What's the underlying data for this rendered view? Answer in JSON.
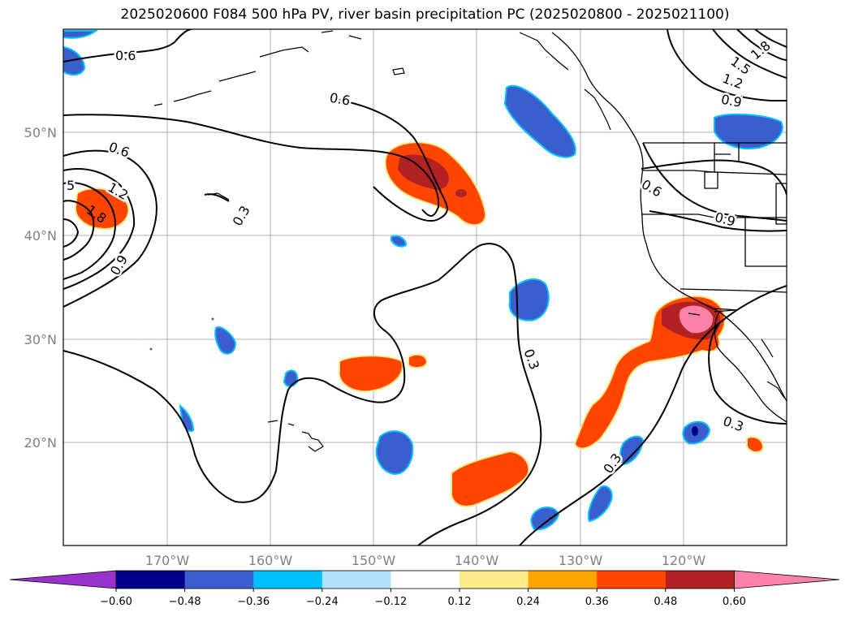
{
  "title": "2025020600 F084 500 hPa PV, river basin precipitation PC (2025020800 - 2025021100)",
  "axes": {
    "lat_labels": [
      "50°N",
      "40°N",
      "30°N",
      "20°N"
    ],
    "lon_labels": [
      "170°W",
      "160°W",
      "150°W",
      "140°W",
      "130°W",
      "120°W"
    ]
  },
  "colorbar": {
    "colors": [
      "#9932cc",
      "#00008b",
      "#3a5fcd",
      "#00bfff",
      "#b0e2ff",
      "#ffffff",
      "#fdeb8c",
      "#ffa500",
      "#ff4500",
      "#b22222",
      "#ff82ab"
    ],
    "ticks": [
      "−0.60",
      "−0.48",
      "−0.36",
      "−0.24",
      "−0.12",
      "0.12",
      "0.24",
      "0.36",
      "0.48",
      "0.60"
    ]
  },
  "contour_labels": [
    "0.6",
    "0.6",
    "0.6",
    "5",
    "1.2",
    "1.8",
    "0.9",
    "0.3",
    "0.3",
    "0.3",
    "0.3",
    "0.6",
    "0.9",
    "1.8",
    "1.5",
    "1.2",
    "0.9"
  ]
}
